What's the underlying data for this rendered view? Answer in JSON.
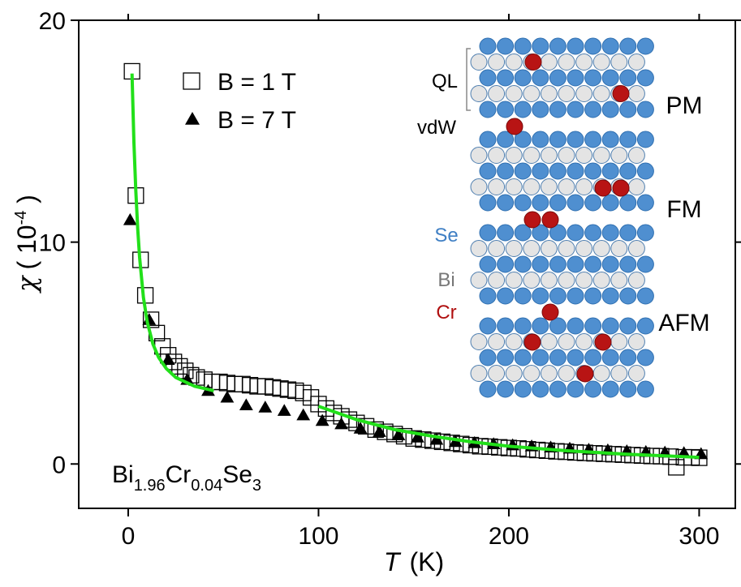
{
  "chart_data": {
    "type": "scatter",
    "xlim": [
      -26,
      319
    ],
    "ylim": [
      -2,
      20
    ],
    "xticks": [
      0,
      100,
      200,
      300
    ],
    "yticks": [
      0,
      10,
      20
    ],
    "x_label": [
      "T",
      "(K)"
    ],
    "y_label": [
      "χ",
      "( 10",
      "-4",
      " )"
    ],
    "legend": "upper left",
    "compound": [
      "Bi",
      "1.96",
      "Cr",
      "0.04",
      "Se",
      "3"
    ],
    "inset_labels": {
      "ql": "QL",
      "vdw": "vdW",
      "pm": "PM",
      "fm": "FM",
      "afm": "AFM",
      "se": "Se",
      "bi": "Bi",
      "cr": "Cr"
    },
    "series": [
      {
        "name": "B = 1 T",
        "marker": "square",
        "color": "#000000",
        "x": [
          2,
          4,
          6.5,
          9,
          12,
          15,
          18,
          21,
          24,
          27,
          30,
          33,
          36,
          40,
          44,
          48,
          52,
          56,
          60,
          64,
          68,
          72,
          76,
          80,
          84,
          88,
          92,
          96,
          100,
          104,
          108,
          112,
          116,
          120,
          125,
          130,
          135,
          140,
          145,
          150,
          155,
          160,
          165,
          170,
          175,
          180,
          185,
          190,
          195,
          200,
          205,
          210,
          215,
          220,
          225,
          230,
          235,
          240,
          245,
          250,
          255,
          260,
          265,
          270,
          275,
          280,
          285,
          288,
          292,
          296,
          300
        ],
        "values": [
          17.7,
          12.1,
          9.2,
          7.6,
          6.5,
          5.9,
          5.3,
          4.9,
          4.6,
          4.4,
          4.2,
          4.0,
          3.9,
          3.8,
          3.7,
          3.7,
          3.65,
          3.6,
          3.6,
          3.55,
          3.5,
          3.5,
          3.45,
          3.4,
          3.35,
          3.3,
          3.2,
          3.0,
          2.7,
          2.5,
          2.3,
          2.15,
          2.0,
          1.85,
          1.7,
          1.55,
          1.45,
          1.35,
          1.25,
          1.15,
          1.1,
          1.05,
          1.0,
          0.95,
          0.9,
          0.85,
          0.8,
          0.78,
          0.75,
          0.72,
          0.7,
          0.66,
          0.63,
          0.6,
          0.57,
          0.55,
          0.52,
          0.5,
          0.48,
          0.46,
          0.44,
          0.42,
          0.4,
          0.38,
          0.36,
          0.35,
          0.33,
          -0.15,
          0.3,
          0.3,
          0.28
        ]
      },
      {
        "name": "B = 7 T",
        "marker": "triangle",
        "color": "#000000",
        "x": [
          1,
          11,
          21,
          31,
          42,
          52,
          62,
          72,
          82,
          92,
          102,
          112,
          122,
          132,
          142,
          152,
          162,
          172,
          182,
          192,
          202,
          212,
          222,
          232,
          242,
          252,
          262,
          272,
          282,
          292,
          301
        ],
        "values": [
          11.0,
          6.5,
          4.7,
          3.8,
          3.3,
          3.0,
          2.65,
          2.55,
          2.4,
          2.2,
          1.95,
          1.8,
          1.6,
          1.45,
          1.3,
          1.2,
          1.1,
          1.0,
          0.95,
          0.9,
          0.85,
          0.8,
          0.75,
          0.7,
          0.65,
          0.62,
          0.58,
          0.55,
          0.52,
          0.5,
          0.45
        ]
      },
      {
        "marker": "line",
        "color": "#22e01a",
        "x": [
          2,
          3,
          4,
          5,
          6,
          8,
          10,
          13,
          16,
          20,
          25,
          30,
          35,
          40,
          45,
          null,
          100,
          120,
          140,
          160,
          180,
          200,
          230,
          260,
          300
        ],
        "values": [
          17.6,
          14.5,
          12.3,
          10.6,
          9.3,
          7.5,
          6.4,
          5.4,
          4.8,
          4.3,
          3.9,
          3.7,
          3.5,
          3.4,
          3.3,
          null,
          2.6,
          2.0,
          1.55,
          1.25,
          1.0,
          0.8,
          0.6,
          0.45,
          0.3
        ]
      }
    ]
  }
}
